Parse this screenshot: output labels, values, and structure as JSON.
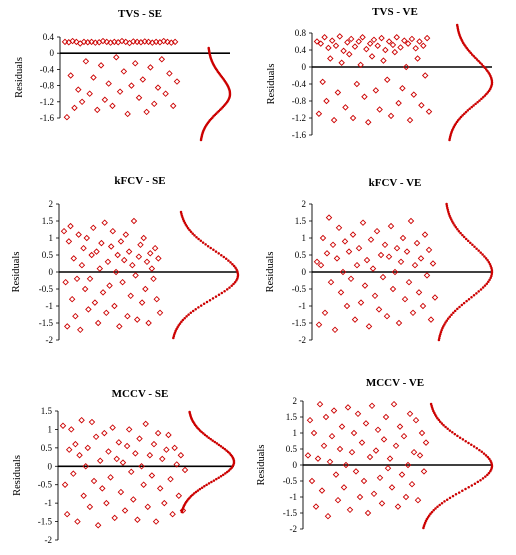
{
  "chart_data": [
    {
      "type": "scatter",
      "title": "TVS - SE",
      "ylabel": "Residuals",
      "ylim": [
        -1.6,
        0.4
      ],
      "yticks": [
        0.4,
        0,
        -0.4,
        -0.8,
        -1.2,
        -1.6
      ],
      "ytick_labels": [
        "0.4",
        "0",
        "-0.4",
        "-0.8",
        "-1.2",
        "-1.6"
      ],
      "series": [
        {
          "x": [
            1,
            2,
            3,
            4,
            5,
            6,
            7,
            8,
            9,
            10,
            11,
            12,
            13,
            14,
            15,
            16,
            17,
            18,
            19,
            20,
            21,
            22,
            23,
            24,
            25,
            26,
            27,
            28,
            29,
            30,
            31,
            32,
            33,
            34,
            35,
            36,
            37,
            38,
            39,
            40,
            41,
            42,
            43,
            44,
            45,
            46,
            47,
            48,
            49,
            50,
            51,
            52,
            53,
            54,
            55,
            56,
            57,
            58,
            59,
            60
          ],
          "y": [
            0.28,
            -1.58,
            0.27,
            -0.55,
            0.3,
            -1.35,
            0.28,
            -0.9,
            0.24,
            -1.2,
            0.28,
            -0.2,
            0.27,
            -1.0,
            0.28,
            -0.6,
            0.26,
            -1.4,
            0.27,
            -0.3,
            0.3,
            -1.15,
            0.28,
            -0.75,
            0.26,
            -1.3,
            0.28,
            -0.1,
            0.27,
            -0.95,
            0.3,
            -0.45,
            0.28,
            -1.5,
            0.25,
            -0.8,
            0.29,
            -0.25,
            0.28,
            -1.1,
            0.27,
            -0.65,
            0.29,
            -1.45,
            0.28,
            -0.35,
            0.26,
            -1.25,
            0.28,
            -0.85,
            0.27,
            -0.15,
            0.3,
            -1.0,
            0.28,
            -0.5,
            0.26,
            -1.3,
            0.28,
            -0.7
          ]
        }
      ]
    },
    {
      "type": "scatter",
      "title": "TVS - VE",
      "ylabel": "Residuals",
      "ylim": [
        -1.6,
        0.8
      ],
      "yticks": [
        0.8,
        0.4,
        0,
        -0.4,
        -0.8,
        -1.2,
        -1.6
      ],
      "ytick_labels": [
        "0.8",
        "0.4",
        "0",
        "-0.4",
        "-0.8",
        "-1.2",
        "-1.6"
      ],
      "series": [
        {
          "x": [
            1,
            2,
            3,
            4,
            5,
            6,
            7,
            8,
            9,
            10,
            11,
            12,
            13,
            14,
            15,
            16,
            17,
            18,
            19,
            20,
            21,
            22,
            23,
            24,
            25,
            26,
            27,
            28,
            29,
            30,
            31,
            32,
            33,
            34,
            35,
            36,
            37,
            38,
            39,
            40,
            41,
            42,
            43,
            44,
            45,
            46,
            47,
            48,
            49,
            50,
            51,
            52,
            53,
            54,
            55,
            56,
            57,
            58,
            59,
            60
          ],
          "y": [
            0.6,
            -1.1,
            0.55,
            -0.35,
            0.7,
            -0.8,
            0.45,
            0.2,
            0.62,
            -1.25,
            0.5,
            -0.6,
            0.72,
            0.1,
            0.38,
            -0.95,
            0.58,
            0.3,
            0.66,
            -1.2,
            0.48,
            -0.4,
            0.6,
            0.05,
            0.7,
            -0.7,
            0.42,
            -1.3,
            0.55,
            0.25,
            0.64,
            -0.55,
            0.5,
            -1.0,
            0.68,
            0.15,
            0.4,
            -0.3,
            0.6,
            -1.15,
            0.52,
            0.35,
            0.7,
            -0.85,
            0.46,
            -0.5,
            0.62,
            0.0,
            0.55,
            -1.25,
            0.66,
            -0.65,
            0.44,
            0.2,
            0.6,
            -0.9,
            0.5,
            -0.2,
            0.68,
            -1.05
          ]
        }
      ]
    },
    {
      "type": "scatter",
      "title": "kFCV - SE",
      "ylabel": "Residuals",
      "ylim": [
        -2,
        2
      ],
      "yticks": [
        2,
        1.5,
        1,
        0.5,
        0,
        -0.5,
        -1,
        -1.5,
        -2
      ],
      "ytick_labels": [
        "2",
        "1.5",
        "1",
        "0.5",
        "0",
        "-0.5",
        "-1",
        "-1.5",
        "-2"
      ],
      "series": [
        {
          "x": [
            1,
            2,
            3,
            4,
            5,
            6,
            7,
            8,
            9,
            10,
            11,
            12,
            13,
            14,
            15,
            16,
            17,
            18,
            19,
            20,
            21,
            22,
            23,
            24,
            25,
            26,
            27,
            28,
            29,
            30,
            31,
            32,
            33,
            34,
            35,
            36,
            37,
            38,
            39,
            40,
            41,
            42,
            43,
            44,
            45,
            46,
            47,
            48,
            49,
            50,
            51,
            52,
            53,
            54,
            55,
            56,
            57,
            58,
            59,
            60
          ],
          "y": [
            1.2,
            -0.3,
            -1.6,
            0.9,
            1.35,
            -0.8,
            0.4,
            -1.3,
            -0.2,
            1.1,
            -1.7,
            0.2,
            0.7,
            -0.5,
            1.0,
            -1.1,
            -0.2,
            0.5,
            1.3,
            -0.9,
            0.6,
            -1.5,
            0.1,
            0.85,
            -0.6,
            1.45,
            -1.2,
            0.3,
            -0.4,
            0.75,
            1.2,
            -1.0,
            0.0,
            0.5,
            -1.6,
            0.9,
            -0.3,
            0.35,
            1.1,
            -1.3,
            0.6,
            -0.7,
            0.2,
            1.5,
            -0.1,
            -1.4,
            0.45,
            0.8,
            -0.9,
            1.0,
            -0.5,
            0.3,
            -1.5,
            0.55,
            0.1,
            -0.2,
            0.7,
            -0.8,
            0.4,
            -1.2
          ]
        }
      ]
    },
    {
      "type": "scatter",
      "title": "kFCV - VE",
      "ylabel": "Residuals",
      "ylim": [
        -2,
        2
      ],
      "yticks": [
        2,
        1.5,
        1,
        0.5,
        0,
        -0.5,
        -1,
        -1.5,
        -2
      ],
      "ytick_labels": [
        "2",
        "1.5",
        "1",
        "0.5",
        "0",
        "-0.5",
        "-1",
        "-1.5",
        "-2"
      ],
      "series": [
        {
          "x": [
            1,
            2,
            3,
            4,
            5,
            6,
            7,
            8,
            9,
            10,
            11,
            12,
            13,
            14,
            15,
            16,
            17,
            18,
            19,
            20,
            21,
            22,
            23,
            24,
            25,
            26,
            27,
            28,
            29,
            30,
            31,
            32,
            33,
            34,
            35,
            36,
            37,
            38,
            39,
            40,
            41,
            42,
            43,
            44,
            45,
            46,
            47,
            48,
            49,
            50,
            51,
            52,
            53,
            54,
            55,
            56,
            57,
            58,
            59,
            60
          ],
          "y": [
            0.3,
            -1.55,
            0.2,
            1.0,
            -1.2,
            0.55,
            1.6,
            -0.3,
            0.8,
            -1.7,
            0.4,
            1.3,
            -0.6,
            0.0,
            0.9,
            -1.0,
            0.6,
            -0.2,
            1.1,
            -1.4,
            0.2,
            0.7,
            -0.9,
            1.45,
            -0.4,
            0.35,
            -1.6,
            0.95,
            0.1,
            -0.7,
            1.2,
            -1.1,
            0.5,
            -0.15,
            0.8,
            -1.3,
            0.45,
            1.35,
            -0.5,
            0.0,
            0.7,
            -1.5,
            0.3,
            1.0,
            -0.8,
            0.6,
            -0.3,
            1.5,
            -1.2,
            0.2,
            0.85,
            -0.6,
            0.4,
            -1.0,
            1.1,
            -0.1,
            0.65,
            -1.4,
            0.25,
            -0.75
          ]
        }
      ]
    },
    {
      "type": "scatter",
      "title": "MCCV - SE",
      "ylabel": "Residuals",
      "ylim": [
        -2,
        1.5
      ],
      "yticks": [
        1.5,
        1,
        0.5,
        0,
        -0.5,
        -1,
        -1.5,
        -2
      ],
      "ytick_labels": [
        "1.5",
        "1",
        "0.5",
        "0",
        "-0.5",
        "-1",
        "-1.5",
        "-2"
      ],
      "series": [
        {
          "x": [
            1,
            2,
            3,
            4,
            5,
            6,
            7,
            8,
            9,
            10,
            11,
            12,
            13,
            14,
            15,
            16,
            17,
            18,
            19,
            20,
            21,
            22,
            23,
            24,
            25,
            26,
            27,
            28,
            29,
            30,
            31,
            32,
            33,
            34,
            35,
            36,
            37,
            38,
            39,
            40,
            41,
            42,
            43,
            44,
            45,
            46,
            47,
            48,
            49,
            50,
            51,
            52,
            53,
            54,
            55,
            56,
            57,
            58,
            59,
            60
          ],
          "y": [
            1.1,
            -0.5,
            -1.3,
            0.45,
            1.0,
            -0.2,
            0.6,
            -1.5,
            0.3,
            1.25,
            -0.8,
            0.0,
            0.5,
            -1.1,
            1.2,
            -0.4,
            0.8,
            -1.6,
            0.15,
            -0.6,
            0.9,
            -1.0,
            0.4,
            -0.3,
            1.05,
            -1.4,
            0.2,
            0.65,
            -0.7,
            0.1,
            -1.2,
            0.55,
            1.0,
            -0.15,
            -0.9,
            0.35,
            -1.45,
            0.75,
            0.0,
            -0.5,
            1.15,
            -1.1,
            0.3,
            -0.25,
            0.6,
            -1.5,
            0.9,
            -0.6,
            0.2,
            -1.0,
            0.45,
            0.85,
            -0.35,
            -1.3,
            0.5,
            0.05,
            -0.8,
            0.3,
            -1.2,
            -0.1
          ]
        }
      ]
    },
    {
      "type": "scatter",
      "title": "MCCV - VE",
      "ylabel": "Residuals",
      "ylim": [
        -2,
        2
      ],
      "yticks": [
        2,
        1.5,
        1,
        0.5,
        0,
        -0.5,
        -1,
        -1.5,
        -2
      ],
      "ytick_labels": [
        "2",
        "1.5",
        "1",
        "0.5",
        "0",
        "-0.5",
        "-1",
        "-1.5",
        "-2"
      ],
      "series": [
        {
          "x": [
            1,
            2,
            3,
            4,
            5,
            6,
            7,
            8,
            9,
            10,
            11,
            12,
            13,
            14,
            15,
            16,
            17,
            18,
            19,
            20,
            21,
            22,
            23,
            24,
            25,
            26,
            27,
            28,
            29,
            30,
            31,
            32,
            33,
            34,
            35,
            36,
            37,
            38,
            39,
            40,
            41,
            42,
            43,
            44,
            45,
            46,
            47,
            48,
            49,
            50,
            51,
            52,
            53,
            54,
            55,
            56,
            57,
            58,
            59,
            60
          ],
          "y": [
            0.3,
            1.4,
            -0.5,
            1.0,
            -1.3,
            0.2,
            1.9,
            -0.8,
            0.6,
            1.5,
            -1.6,
            0.1,
            0.9,
            1.7,
            -0.3,
            -1.1,
            0.5,
            1.2,
            -0.7,
            0.0,
            1.8,
            -1.4,
            0.4,
            1.0,
            -0.2,
            1.6,
            -1.0,
            0.7,
            -0.5,
            1.3,
            -1.5,
            0.25,
            1.85,
            -0.9,
            0.45,
            1.1,
            -0.4,
            -1.2,
            0.8,
            1.5,
            -0.1,
            0.2,
            -0.7,
            1.9,
            0.6,
            -1.3,
            1.2,
            -0.3,
            0.9,
            -1.0,
            0.0,
            1.6,
            -0.6,
            0.4,
            1.4,
            -1.1,
            0.3,
            1.0,
            -0.2,
            0.7
          ]
        }
      ]
    }
  ]
}
